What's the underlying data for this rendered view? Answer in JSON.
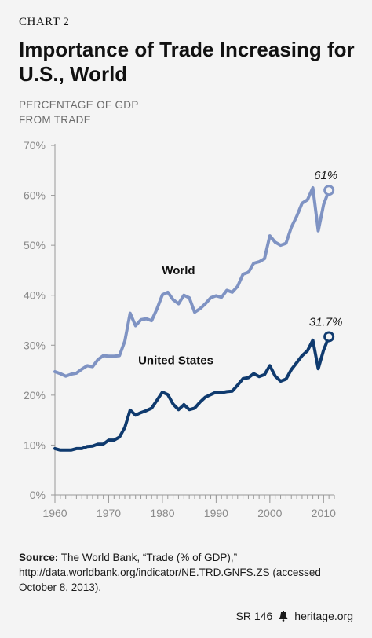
{
  "header": {
    "chart_label": "CHART 2",
    "title": "Importance of Trade Increasing for U.S., World",
    "subtitle_line1": "PERCENTAGE OF GDP",
    "subtitle_line2": "FROM TRADE"
  },
  "source": {
    "label": "Source:",
    "text": "The World Bank, “Trade (% of GDP),” http://data.worldbank.org/indicator/NE.TRD.GNFS.ZS (accessed October 8, 2013)."
  },
  "footer": {
    "report_id": "SR 146",
    "site": "heritage.org"
  },
  "colors": {
    "world": "#7f93c3",
    "united_states": "#0f3a6e",
    "axis": "#999999",
    "tick_text": "#8a8a8a"
  },
  "chart_data": {
    "type": "line",
    "xlim": [
      1960,
      2012
    ],
    "ylim": [
      0,
      70
    ],
    "x_ticks": [
      {
        "value": 1960,
        "label": "1960"
      },
      {
        "value": 1970,
        "label": "1970"
      },
      {
        "value": 1980,
        "label": "1980"
      },
      {
        "value": 1990,
        "label": "1990"
      },
      {
        "value": 2000,
        "label": "2000"
      },
      {
        "value": 2010,
        "label": "2010"
      }
    ],
    "y_ticks": [
      {
        "value": 0,
        "label": "0%"
      },
      {
        "value": 10,
        "label": "10%"
      },
      {
        "value": 20,
        "label": "20%"
      },
      {
        "value": 30,
        "label": "30%"
      },
      {
        "value": 40,
        "label": "40%"
      },
      {
        "value": 50,
        "label": "50%"
      },
      {
        "value": 60,
        "label": "60%"
      },
      {
        "value": 70,
        "label": "70%"
      }
    ],
    "grid": false,
    "series": [
      {
        "name": "World",
        "color": "#7f93c3",
        "end_label": "61%",
        "points": [
          [
            1960,
            24.7
          ],
          [
            1961,
            24.3
          ],
          [
            1962,
            23.8
          ],
          [
            1963,
            24.2
          ],
          [
            1964,
            24.4
          ],
          [
            1965,
            25.2
          ],
          [
            1966,
            25.9
          ],
          [
            1967,
            25.7
          ],
          [
            1968,
            27.1
          ],
          [
            1969,
            27.9
          ],
          [
            1970,
            27.8
          ],
          [
            1971,
            27.8
          ],
          [
            1972,
            27.9
          ],
          [
            1973,
            30.8
          ],
          [
            1974,
            36.4
          ],
          [
            1975,
            33.9
          ],
          [
            1976,
            35.1
          ],
          [
            1977,
            35.3
          ],
          [
            1978,
            34.9
          ],
          [
            1979,
            37.3
          ],
          [
            1980,
            40.1
          ],
          [
            1981,
            40.6
          ],
          [
            1982,
            39.1
          ],
          [
            1983,
            38.3
          ],
          [
            1984,
            40.0
          ],
          [
            1985,
            39.5
          ],
          [
            1986,
            36.6
          ],
          [
            1987,
            37.3
          ],
          [
            1988,
            38.3
          ],
          [
            1989,
            39.5
          ],
          [
            1990,
            39.9
          ],
          [
            1991,
            39.6
          ],
          [
            1992,
            41.0
          ],
          [
            1993,
            40.6
          ],
          [
            1994,
            41.8
          ],
          [
            1995,
            44.2
          ],
          [
            1996,
            44.6
          ],
          [
            1997,
            46.4
          ],
          [
            1998,
            46.7
          ],
          [
            1999,
            47.3
          ],
          [
            2000,
            51.9
          ],
          [
            2001,
            50.6
          ],
          [
            2002,
            50.0
          ],
          [
            2003,
            50.4
          ],
          [
            2004,
            53.6
          ],
          [
            2005,
            55.8
          ],
          [
            2006,
            58.4
          ],
          [
            2007,
            59.1
          ],
          [
            2008,
            61.5
          ],
          [
            2009,
            52.9
          ],
          [
            2010,
            58.1
          ],
          [
            2011,
            61.0
          ]
        ]
      },
      {
        "name": "United States",
        "color": "#0f3a6e",
        "end_label": "31.7%",
        "points": [
          [
            1960,
            9.3
          ],
          [
            1961,
            9.0
          ],
          [
            1962,
            9.0
          ],
          [
            1963,
            9.0
          ],
          [
            1964,
            9.3
          ],
          [
            1965,
            9.3
          ],
          [
            1966,
            9.7
          ],
          [
            1967,
            9.8
          ],
          [
            1968,
            10.2
          ],
          [
            1969,
            10.2
          ],
          [
            1970,
            11.0
          ],
          [
            1971,
            11.0
          ],
          [
            1972,
            11.6
          ],
          [
            1973,
            13.5
          ],
          [
            1974,
            17.0
          ],
          [
            1975,
            16.0
          ],
          [
            1976,
            16.5
          ],
          [
            1977,
            16.9
          ],
          [
            1978,
            17.4
          ],
          [
            1979,
            19.0
          ],
          [
            1980,
            20.6
          ],
          [
            1981,
            20.1
          ],
          [
            1982,
            18.2
          ],
          [
            1983,
            17.1
          ],
          [
            1984,
            18.1
          ],
          [
            1985,
            17.1
          ],
          [
            1986,
            17.4
          ],
          [
            1987,
            18.6
          ],
          [
            1988,
            19.6
          ],
          [
            1989,
            20.1
          ],
          [
            1990,
            20.6
          ],
          [
            1991,
            20.5
          ],
          [
            1992,
            20.7
          ],
          [
            1993,
            20.8
          ],
          [
            1994,
            22.0
          ],
          [
            1995,
            23.3
          ],
          [
            1996,
            23.5
          ],
          [
            1997,
            24.3
          ],
          [
            1998,
            23.7
          ],
          [
            1999,
            24.1
          ],
          [
            2000,
            25.9
          ],
          [
            2001,
            23.8
          ],
          [
            2002,
            22.8
          ],
          [
            2003,
            23.2
          ],
          [
            2004,
            25.1
          ],
          [
            2005,
            26.5
          ],
          [
            2006,
            27.9
          ],
          [
            2007,
            28.9
          ],
          [
            2008,
            31.0
          ],
          [
            2009,
            25.3
          ],
          [
            2010,
            29.0
          ],
          [
            2011,
            31.7
          ]
        ]
      }
    ]
  }
}
